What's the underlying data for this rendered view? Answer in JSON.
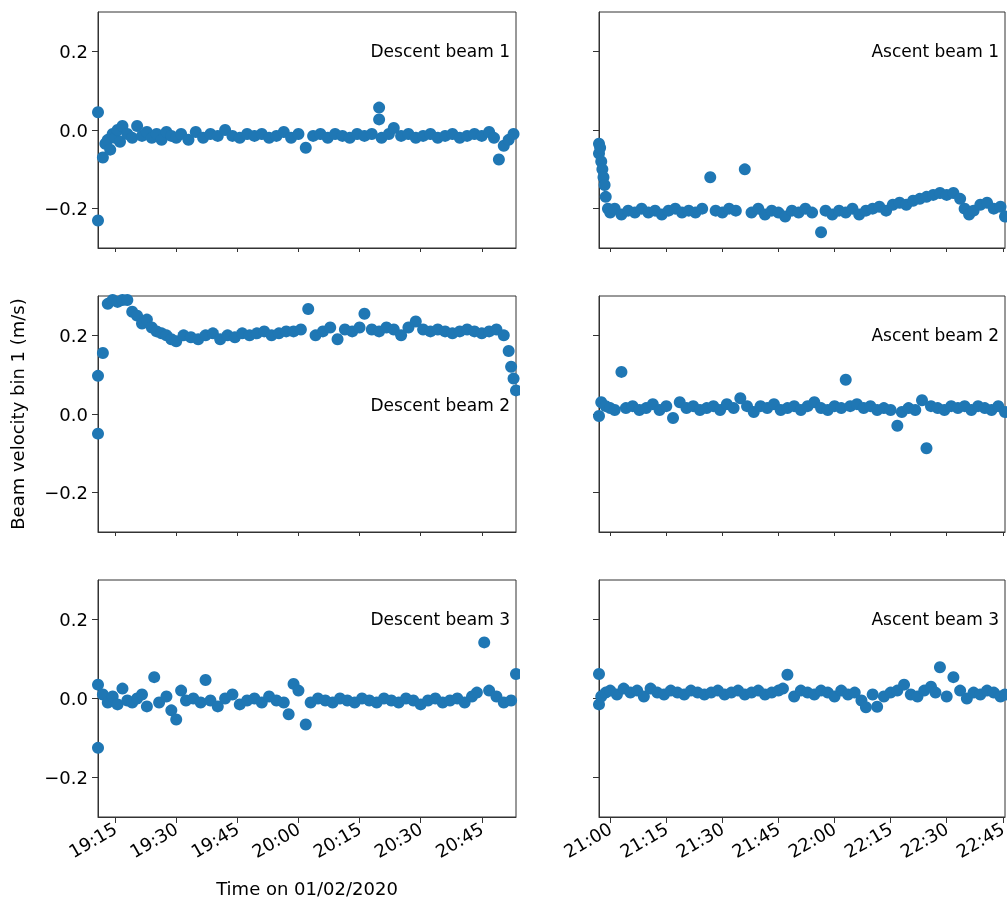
{
  "chart_data": [
    {
      "type": "scatter",
      "annotations": [
        "Descent beam 1"
      ],
      "color": "#1f77b4",
      "marker": "circle",
      "grid": false,
      "tick_labels": "y",
      "x": [
        19.18,
        19.18,
        19.2,
        19.21,
        19.22,
        19.23,
        19.24,
        19.25,
        19.26,
        19.27,
        19.28,
        19.3,
        19.32,
        19.34,
        19.36,
        19.38,
        19.4,
        19.42,
        19.44,
        19.46,
        19.48,
        19.5,
        19.52,
        19.55,
        19.58,
        19.61,
        19.64,
        19.67,
        19.7,
        19.73,
        19.76,
        19.79,
        19.82,
        19.85,
        19.88,
        19.91,
        19.94,
        19.97,
        20.0,
        20.03,
        20.06,
        20.09,
        20.12,
        20.15,
        20.18,
        20.21,
        20.24,
        20.27,
        20.3,
        20.33,
        20.33,
        20.34,
        20.37,
        20.39,
        20.42,
        20.45,
        20.48,
        20.51,
        20.54,
        20.57,
        20.6,
        20.63,
        20.66,
        20.69,
        20.72,
        20.75,
        20.78,
        20.8,
        20.82,
        20.84,
        20.86,
        20.88
      ],
      "values": [
        0.045,
        -0.23,
        -0.07,
        -0.035,
        -0.025,
        -0.05,
        -0.01,
        -0.02,
        0.0,
        -0.03,
        0.01,
        -0.01,
        -0.02,
        0.01,
        -0.015,
        -0.005,
        -0.02,
        -0.01,
        -0.025,
        -0.005,
        -0.015,
        -0.02,
        -0.01,
        -0.025,
        -0.005,
        -0.02,
        -0.01,
        -0.015,
        0.0,
        -0.015,
        -0.02,
        -0.01,
        -0.015,
        -0.01,
        -0.02,
        -0.015,
        -0.005,
        -0.02,
        -0.01,
        -0.045,
        -0.015,
        -0.01,
        -0.02,
        -0.01,
        -0.015,
        -0.02,
        -0.01,
        -0.015,
        -0.01,
        0.057,
        0.027,
        -0.02,
        -0.01,
        0.005,
        -0.015,
        -0.01,
        -0.02,
        -0.015,
        -0.01,
        -0.02,
        -0.015,
        -0.01,
        -0.02,
        -0.015,
        -0.01,
        -0.015,
        -0.005,
        -0.02,
        -0.075,
        -0.04,
        -0.025,
        -0.01
      ],
      "xlim": [
        19.18,
        20.89
      ],
      "xticks": [
        {
          "value": 19.25,
          "label": null
        },
        {
          "value": 19.5,
          "label": null
        },
        {
          "value": 19.75,
          "label": null
        },
        {
          "value": 20.0,
          "label": null
        },
        {
          "value": 20.25,
          "label": null
        },
        {
          "value": 20.5,
          "label": null
        },
        {
          "value": 20.75,
          "label": null
        }
      ],
      "ylim": [
        -0.3,
        0.3
      ],
      "yticks": [
        {
          "value": -0.2,
          "label": "−0.2"
        },
        {
          "value": 0,
          "label": "0.0"
        },
        {
          "value": 0.2,
          "label": "0.2"
        }
      ]
    },
    {
      "type": "scatter",
      "annotations": [
        "Ascent beam 1"
      ],
      "color": "#1f77b4",
      "marker": "circle",
      "grid": false,
      "tick_labels": false,
      "x": [
        20.95,
        20.95,
        20.955,
        20.96,
        20.965,
        20.97,
        20.975,
        20.98,
        20.99,
        21.0,
        21.02,
        21.05,
        21.08,
        21.11,
        21.14,
        21.17,
        21.2,
        21.23,
        21.26,
        21.29,
        21.32,
        21.35,
        21.38,
        21.41,
        21.446,
        21.47,
        21.5,
        21.53,
        21.56,
        21.6,
        21.63,
        21.66,
        21.69,
        21.72,
        21.75,
        21.78,
        21.81,
        21.84,
        21.87,
        21.9,
        21.94,
        21.96,
        21.99,
        22.02,
        22.05,
        22.08,
        22.11,
        22.14,
        22.17,
        22.2,
        22.23,
        22.26,
        22.29,
        22.32,
        22.35,
        22.38,
        22.41,
        22.44,
        22.47,
        22.5,
        22.53,
        22.56,
        22.58,
        22.6,
        22.62,
        22.65,
        22.68,
        22.71,
        22.74,
        22.76
      ],
      "values": [
        -0.035,
        -0.06,
        -0.045,
        -0.08,
        -0.1,
        -0.12,
        -0.14,
        -0.17,
        -0.2,
        -0.21,
        -0.2,
        -0.215,
        -0.205,
        -0.21,
        -0.2,
        -0.21,
        -0.205,
        -0.215,
        -0.205,
        -0.2,
        -0.21,
        -0.205,
        -0.21,
        -0.2,
        -0.12,
        -0.205,
        -0.21,
        -0.2,
        -0.205,
        -0.1,
        -0.21,
        -0.2,
        -0.215,
        -0.205,
        -0.21,
        -0.22,
        -0.205,
        -0.21,
        -0.2,
        -0.21,
        -0.26,
        -0.205,
        -0.215,
        -0.205,
        -0.21,
        -0.2,
        -0.215,
        -0.205,
        -0.2,
        -0.195,
        -0.205,
        -0.19,
        -0.185,
        -0.19,
        -0.18,
        -0.175,
        -0.17,
        -0.165,
        -0.16,
        -0.165,
        -0.16,
        -0.175,
        -0.2,
        -0.215,
        -0.205,
        -0.19,
        -0.185,
        -0.2,
        -0.195,
        -0.22
      ],
      "xlim": [
        20.95,
        22.76
      ],
      "xticks": [
        {
          "value": 21.0,
          "label": null
        },
        {
          "value": 21.25,
          "label": null
        },
        {
          "value": 21.5,
          "label": null
        },
        {
          "value": 21.75,
          "label": null
        },
        {
          "value": 22.0,
          "label": null
        },
        {
          "value": 22.25,
          "label": null
        },
        {
          "value": 22.5,
          "label": null
        },
        {
          "value": 22.75,
          "label": null
        }
      ],
      "ylim": [
        -0.3,
        0.3
      ],
      "yticks": [
        {
          "value": -0.2,
          "label": null
        },
        {
          "value": 0,
          "label": null
        },
        {
          "value": 0.2,
          "label": null
        }
      ]
    },
    {
      "type": "scatter",
      "annotations": [
        "Descent beam 2"
      ],
      "ylabel": "Beam velocity bin 1 (m/s)",
      "color": "#1f77b4",
      "marker": "circle",
      "grid": false,
      "tick_labels": "y",
      "x": [
        19.18,
        19.18,
        19.2,
        19.22,
        19.24,
        19.26,
        19.28,
        19.3,
        19.32,
        19.34,
        19.36,
        19.38,
        19.4,
        19.42,
        19.44,
        19.46,
        19.48,
        19.5,
        19.53,
        19.56,
        19.59,
        19.62,
        19.65,
        19.68,
        19.71,
        19.74,
        19.77,
        19.8,
        19.83,
        19.86,
        19.89,
        19.92,
        19.95,
        19.98,
        20.01,
        20.04,
        20.07,
        20.1,
        20.13,
        20.16,
        20.19,
        20.22,
        20.25,
        20.27,
        20.3,
        20.33,
        20.36,
        20.39,
        20.42,
        20.45,
        20.48,
        20.51,
        20.54,
        20.57,
        20.6,
        20.63,
        20.66,
        20.69,
        20.72,
        20.75,
        20.78,
        20.81,
        20.84,
        20.86,
        20.87,
        20.88,
        20.89
      ],
      "values": [
        -0.05,
        0.097,
        0.155,
        0.28,
        0.29,
        0.285,
        0.29,
        0.29,
        0.26,
        0.25,
        0.23,
        0.24,
        0.22,
        0.21,
        0.205,
        0.2,
        0.19,
        0.185,
        0.2,
        0.195,
        0.19,
        0.2,
        0.205,
        0.19,
        0.2,
        0.195,
        0.205,
        0.2,
        0.205,
        0.21,
        0.2,
        0.205,
        0.21,
        0.21,
        0.215,
        0.267,
        0.2,
        0.21,
        0.22,
        0.19,
        0.215,
        0.21,
        0.22,
        0.255,
        0.215,
        0.21,
        0.22,
        0.215,
        0.2,
        0.22,
        0.235,
        0.215,
        0.21,
        0.215,
        0.21,
        0.205,
        0.21,
        0.215,
        0.21,
        0.205,
        0.21,
        0.215,
        0.2,
        0.16,
        0.12,
        0.09,
        0.06
      ],
      "xlim": [
        19.18,
        20.89
      ],
      "xticks": [
        {
          "value": 19.25,
          "label": null
        },
        {
          "value": 19.5,
          "label": null
        },
        {
          "value": 19.75,
          "label": null
        },
        {
          "value": 20.0,
          "label": null
        },
        {
          "value": 20.25,
          "label": null
        },
        {
          "value": 20.5,
          "label": null
        },
        {
          "value": 20.75,
          "label": null
        }
      ],
      "ylim": [
        -0.3,
        0.3
      ],
      "yticks": [
        {
          "value": -0.2,
          "label": "−0.2"
        },
        {
          "value": 0,
          "label": "0.0"
        },
        {
          "value": 0.2,
          "label": "0.2"
        }
      ]
    },
    {
      "type": "scatter",
      "annotations": [
        "Ascent beam 2"
      ],
      "color": "#1f77b4",
      "marker": "circle",
      "grid": false,
      "tick_labels": false,
      "x": [
        20.95,
        20.96,
        20.98,
        21.0,
        21.02,
        21.05,
        21.07,
        21.1,
        21.13,
        21.16,
        21.19,
        21.22,
        21.25,
        21.28,
        21.31,
        21.34,
        21.37,
        21.4,
        21.43,
        21.46,
        21.49,
        21.52,
        21.55,
        21.58,
        21.61,
        21.64,
        21.67,
        21.7,
        21.73,
        21.76,
        21.79,
        21.82,
        21.85,
        21.88,
        21.91,
        21.94,
        21.97,
        22.0,
        22.03,
        22.05,
        22.07,
        22.1,
        22.13,
        22.16,
        22.19,
        22.22,
        22.25,
        22.28,
        22.3,
        22.33,
        22.36,
        22.39,
        22.41,
        22.43,
        22.46,
        22.49,
        22.52,
        22.55,
        22.58,
        22.61,
        22.64,
        22.67,
        22.7,
        22.73,
        22.76
      ],
      "values": [
        -0.005,
        0.03,
        0.02,
        0.015,
        0.01,
        0.107,
        0.015,
        0.02,
        0.01,
        0.015,
        0.025,
        0.01,
        0.02,
        -0.01,
        0.03,
        0.015,
        0.02,
        0.01,
        0.015,
        0.02,
        0.01,
        0.025,
        0.015,
        0.04,
        0.02,
        0.005,
        0.02,
        0.015,
        0.025,
        0.01,
        0.015,
        0.02,
        0.01,
        0.02,
        0.03,
        0.015,
        0.01,
        0.02,
        0.015,
        0.087,
        0.02,
        0.025,
        0.015,
        0.02,
        0.01,
        0.015,
        0.01,
        -0.03,
        0.005,
        0.015,
        0.01,
        0.035,
        -0.087,
        0.02,
        0.015,
        0.01,
        0.02,
        0.015,
        0.02,
        0.01,
        0.02,
        0.015,
        0.01,
        0.02,
        0.005
      ],
      "xlim": [
        20.95,
        22.76
      ],
      "xticks": [
        {
          "value": 21.0,
          "label": null
        },
        {
          "value": 21.25,
          "label": null
        },
        {
          "value": 21.5,
          "label": null
        },
        {
          "value": 21.75,
          "label": null
        },
        {
          "value": 22.0,
          "label": null
        },
        {
          "value": 22.25,
          "label": null
        },
        {
          "value": 22.5,
          "label": null
        },
        {
          "value": 22.75,
          "label": null
        }
      ],
      "ylim": [
        -0.3,
        0.3
      ],
      "yticks": [
        {
          "value": -0.2,
          "label": null
        },
        {
          "value": 0,
          "label": null
        },
        {
          "value": 0.2,
          "label": null
        }
      ]
    },
    {
      "type": "scatter",
      "annotations": [
        "Descent beam 3"
      ],
      "xlabel": "Time on 01/02/2020",
      "color": "#1f77b4",
      "marker": "circle",
      "grid": false,
      "x": [
        19.18,
        19.18,
        19.2,
        19.22,
        19.24,
        19.26,
        19.28,
        19.3,
        19.32,
        19.34,
        19.36,
        19.38,
        19.41,
        19.43,
        19.46,
        19.48,
        19.5,
        19.52,
        19.54,
        19.57,
        19.6,
        19.62,
        19.64,
        19.67,
        19.7,
        19.73,
        19.76,
        19.79,
        19.82,
        19.85,
        19.88,
        19.91,
        19.94,
        19.96,
        19.98,
        20.0,
        20.03,
        20.05,
        20.08,
        20.11,
        20.14,
        20.17,
        20.2,
        20.23,
        20.26,
        20.29,
        20.32,
        20.35,
        20.38,
        20.41,
        20.44,
        20.47,
        20.5,
        20.53,
        20.56,
        20.59,
        20.62,
        20.65,
        20.68,
        20.71,
        20.73,
        20.76,
        20.78,
        20.81,
        20.84,
        20.87,
        20.89
      ],
      "values": [
        0.035,
        -0.125,
        0.01,
        -0.01,
        0.005,
        -0.015,
        0.025,
        -0.005,
        -0.01,
        0.0,
        0.01,
        -0.02,
        0.054,
        -0.01,
        0.005,
        -0.03,
        -0.053,
        0.02,
        -0.005,
        0.0,
        -0.01,
        0.047,
        -0.005,
        -0.02,
        0.0,
        0.01,
        -0.015,
        -0.005,
        0.0,
        -0.01,
        0.005,
        -0.005,
        -0.01,
        -0.04,
        0.037,
        0.02,
        -0.066,
        -0.01,
        0.0,
        -0.005,
        -0.01,
        0.0,
        -0.005,
        -0.01,
        0.0,
        -0.005,
        -0.01,
        0.0,
        -0.005,
        -0.01,
        0.0,
        -0.005,
        -0.015,
        -0.005,
        0.0,
        -0.01,
        -0.005,
        0.0,
        -0.01,
        0.005,
        0.015,
        0.142,
        0.02,
        0.005,
        -0.01,
        -0.005,
        0.062
      ],
      "xlim": [
        19.18,
        20.89
      ],
      "xticks": [
        {
          "value": 19.25,
          "label": "19:15"
        },
        {
          "value": 19.5,
          "label": "19:30"
        },
        {
          "value": 19.75,
          "label": "19:45"
        },
        {
          "value": 20.0,
          "label": "20:00"
        },
        {
          "value": 20.25,
          "label": "20:15"
        },
        {
          "value": 20.5,
          "label": "20:30"
        },
        {
          "value": 20.75,
          "label": "20:45"
        }
      ],
      "ylim": [
        -0.3,
        0.3
      ],
      "yticks": [
        {
          "value": -0.2,
          "label": "−0.2"
        },
        {
          "value": 0,
          "label": "0.0"
        },
        {
          "value": 0.2,
          "label": "0.2"
        }
      ]
    },
    {
      "type": "scatter",
      "annotations": [
        "Ascent beam 3"
      ],
      "color": "#1f77b4",
      "marker": "circle",
      "grid": false,
      "tick_labels": "x",
      "x": [
        20.95,
        20.95,
        20.96,
        20.98,
        21.0,
        21.03,
        21.06,
        21.09,
        21.12,
        21.15,
        21.18,
        21.21,
        21.24,
        21.27,
        21.3,
        21.33,
        21.36,
        21.39,
        21.42,
        21.45,
        21.48,
        21.51,
        21.54,
        21.57,
        21.6,
        21.63,
        21.66,
        21.69,
        21.72,
        21.75,
        21.77,
        21.79,
        21.82,
        21.85,
        21.88,
        21.91,
        21.94,
        21.97,
        22.0,
        22.03,
        22.06,
        22.09,
        22.12,
        22.14,
        22.17,
        22.19,
        22.22,
        22.25,
        22.28,
        22.31,
        22.34,
        22.37,
        22.4,
        22.43,
        22.45,
        22.47,
        22.5,
        22.53,
        22.56,
        22.59,
        22.62,
        22.65,
        22.68,
        22.71,
        22.74,
        22.76
      ],
      "values": [
        0.062,
        -0.015,
        0.005,
        0.015,
        0.02,
        0.01,
        0.025,
        0.015,
        0.02,
        0.005,
        0.025,
        0.015,
        0.01,
        0.02,
        0.015,
        0.01,
        0.02,
        0.015,
        0.01,
        0.015,
        0.02,
        0.01,
        0.015,
        0.02,
        0.01,
        0.015,
        0.02,
        0.01,
        0.015,
        0.02,
        0.025,
        0.06,
        0.005,
        0.02,
        0.015,
        0.01,
        0.02,
        0.015,
        0.005,
        0.02,
        0.01,
        0.015,
        -0.005,
        -0.022,
        0.01,
        -0.021,
        0.005,
        0.015,
        0.02,
        0.035,
        0.01,
        0.005,
        0.02,
        0.03,
        0.015,
        0.079,
        0.005,
        0.054,
        0.02,
        0.0,
        0.015,
        0.01,
        0.02,
        0.015,
        0.005,
        0.01
      ],
      "xlim": [
        20.95,
        22.76
      ],
      "xticks": [
        {
          "value": 21.0,
          "label": "21:00"
        },
        {
          "value": 21.25,
          "label": "21:15"
        },
        {
          "value": 21.5,
          "label": "21:30"
        },
        {
          "value": 21.75,
          "label": "21:45"
        },
        {
          "value": 22.0,
          "label": "22:00"
        },
        {
          "value": 22.25,
          "label": "22:15"
        },
        {
          "value": 22.5,
          "label": "22:30"
        },
        {
          "value": 22.75,
          "label": "22:45"
        }
      ],
      "ylim": [
        -0.3,
        0.3
      ],
      "yticks": [
        {
          "value": -0.2,
          "label": null
        },
        {
          "value": 0,
          "label": null
        },
        {
          "value": 0.2,
          "label": null
        }
      ]
    }
  ]
}
